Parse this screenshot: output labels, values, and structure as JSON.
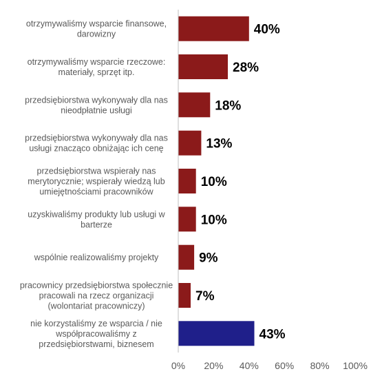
{
  "chart_data": {
    "type": "bar",
    "orientation": "horizontal",
    "title": "",
    "xlabel": "",
    "ylabel": "",
    "categories": [
      [
        "otrzymywaliśmy wsparcie finansowe,",
        "darowizny"
      ],
      [
        "otrzymywaliśmy wsparcie rzeczowe:",
        "materiały, sprzęt itp."
      ],
      [
        "przedsiębiorstwa wykonywały dla nas",
        "nieodpłatnie usługi"
      ],
      [
        "przedsiębiorstwa wykonywały dla nas",
        "usługi znacząco obniżając ich cenę"
      ],
      [
        "przedsiębiorstwa wspierały nas",
        "merytorycznie; wspierały wiedzą lub",
        "umiejętnościami pracowników"
      ],
      [
        "uzyskiwaliśmy produkty lub usługi w",
        "barterze"
      ],
      [
        "wspólnie realizowaliśmy projekty"
      ],
      [
        "pracownicy przedsiębiorstwa społecznie",
        "pracowali na rzecz organizacji",
        "(wolontariat pracowniczy)"
      ],
      [
        "nie korzystaliśmy ze wsparcia / nie",
        "współpracowaliśmy z",
        "przedsiębiorstwami, biznesem"
      ]
    ],
    "values": [
      40,
      28,
      18,
      13,
      10,
      10,
      9,
      7,
      43
    ],
    "value_labels": [
      "40%",
      "28%",
      "18%",
      "13%",
      "10%",
      "10%",
      "9%",
      "7%",
      "43%"
    ],
    "bar_colors": [
      "#8b1a1a",
      "#8b1a1a",
      "#8b1a1a",
      "#8b1a1a",
      "#8b1a1a",
      "#8b1a1a",
      "#8b1a1a",
      "#8b1a1a",
      "#1f1f8a"
    ],
    "xlim": [
      0,
      100
    ],
    "x_ticks": [
      0,
      20,
      40,
      60,
      80,
      100
    ],
    "x_tick_labels": [
      "0%",
      "20%",
      "40%",
      "60%",
      "80%",
      "100%"
    ],
    "grid": false,
    "legend": "none"
  }
}
